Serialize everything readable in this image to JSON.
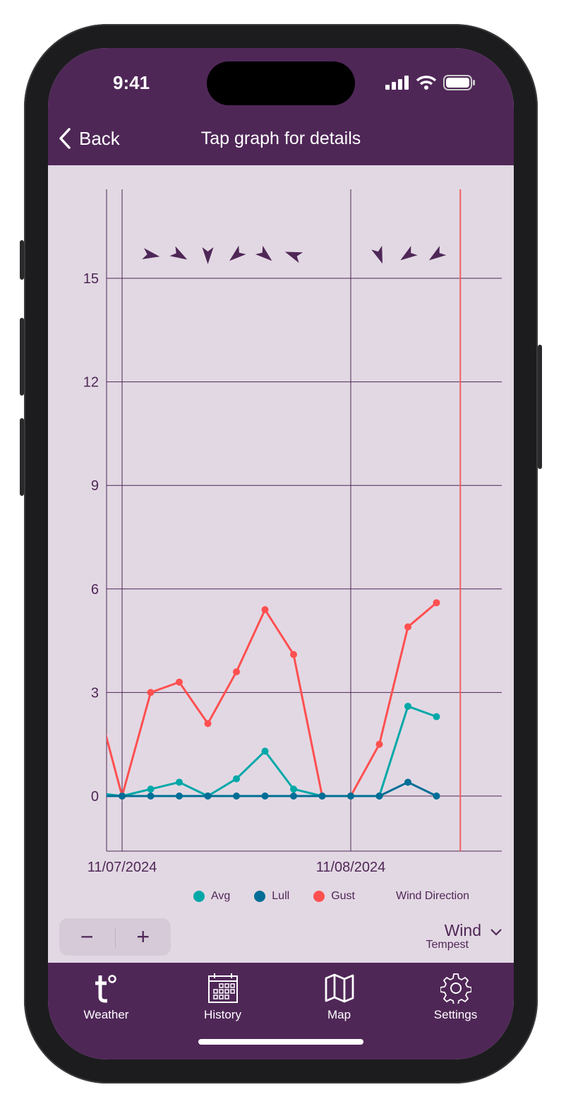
{
  "status_bar": {
    "time": "9:41"
  },
  "header": {
    "back_label": "Back",
    "title": "Tap graph for details"
  },
  "colors": {
    "brand": "#4F2757",
    "background": "#E2D8E3",
    "avg": "#00A8A8",
    "lull": "#006E96",
    "gust": "#FF5050",
    "now_marker": "#F26060"
  },
  "chart_data": {
    "type": "line",
    "ylim": [
      -1.5,
      17.5
    ],
    "yticks": [
      "0",
      "3",
      "6",
      "9",
      "12",
      "15"
    ],
    "ytick_values": [
      0,
      3,
      6,
      9,
      12,
      15
    ],
    "date_labels": [
      {
        "label": "11/07/2024",
        "x": "2024-11-07T00:00"
      },
      {
        "label": "11/08/2024",
        "x": "2024-11-08T00:00"
      }
    ],
    "x": [
      "2024-11-06T21:00",
      "2024-11-07T00:00",
      "2024-11-07T03:00",
      "2024-11-07T06:00",
      "2024-11-07T09:00",
      "2024-11-07T12:00",
      "2024-11-07T15:00",
      "2024-11-07T18:00",
      "2024-11-07T21:00",
      "2024-11-08T00:00",
      "2024-11-08T03:00",
      "2024-11-08T06:00",
      "2024-11-08T09:00"
    ],
    "series": [
      {
        "name": "Avg",
        "color": "#00A8A8",
        "values": [
          0.1,
          0,
          0.2,
          0.4,
          0,
          0.5,
          1.3,
          0.2,
          0,
          0,
          0,
          2.6,
          2.3
        ]
      },
      {
        "name": "Lull",
        "color": "#006E96",
        "values": [
          0,
          0,
          0,
          0,
          0,
          0,
          0,
          0,
          0,
          0,
          0,
          0.4,
          0
        ]
      },
      {
        "name": "Gust",
        "color": "#FF5050",
        "values": [
          3.1,
          0,
          3.0,
          3.3,
          2.1,
          3.6,
          5.4,
          4.1,
          0,
          0,
          1.5,
          4.9,
          5.6
        ]
      }
    ],
    "wind_direction": {
      "name": "Wind Direction",
      "x": [
        "2024-11-07T03:00",
        "2024-11-07T06:00",
        "2024-11-07T09:00",
        "2024-11-07T12:00",
        "2024-11-07T15:00",
        "2024-11-07T18:00",
        "2024-11-08T03:00",
        "2024-11-08T06:00",
        "2024-11-08T09:00"
      ],
      "pointing_deg": [
        100,
        120,
        180,
        230,
        130,
        290,
        160,
        235,
        235
      ]
    },
    "now_marker": "2024-11-08T11:30",
    "grid": true,
    "legend": "bottom"
  },
  "controls": {
    "zoom_out": "−",
    "zoom_in": "+",
    "metric": "Wind",
    "source": "Tempest"
  },
  "nav": [
    {
      "label": "Weather",
      "icon": "tempest-logo-icon"
    },
    {
      "label": "History",
      "icon": "calendar-icon"
    },
    {
      "label": "Map",
      "icon": "map-icon"
    },
    {
      "label": "Settings",
      "icon": "gear-icon"
    }
  ]
}
